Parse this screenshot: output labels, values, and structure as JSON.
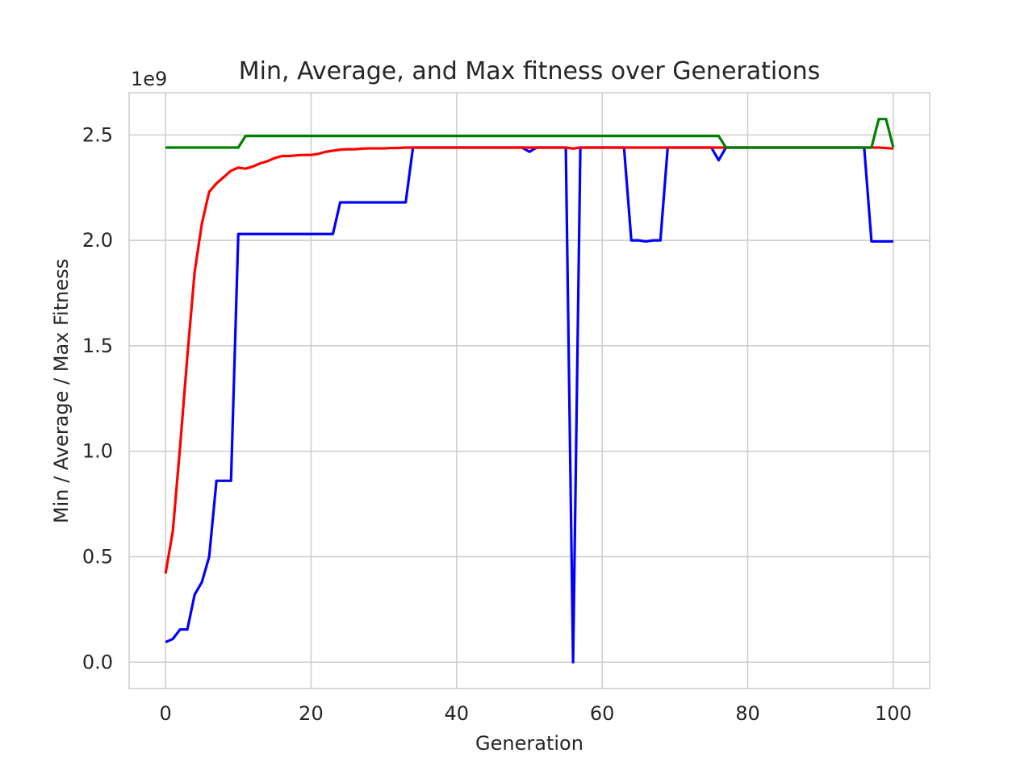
{
  "chart_data": {
    "type": "line",
    "title": "Min, Average, and Max fitness over Generations",
    "xlabel": "Generation",
    "ylabel": "Min / Average / Max Fitness",
    "y_offset_label": "1e9",
    "xlim": [
      -5,
      105
    ],
    "ylim": [
      -0.125,
      2.7
    ],
    "xticks": [
      0,
      20,
      40,
      60,
      80,
      100
    ],
    "xtick_labels": [
      "0",
      "20",
      "40",
      "60",
      "80",
      "100"
    ],
    "yticks": [
      0.0,
      0.5,
      1.0,
      1.5,
      2.0,
      2.5
    ],
    "ytick_labels": [
      "0.0",
      "0.5",
      "1.0",
      "1.5",
      "2.0",
      "2.5"
    ],
    "grid": true,
    "x": [
      0,
      1,
      2,
      3,
      4,
      5,
      6,
      7,
      8,
      9,
      10,
      11,
      12,
      13,
      14,
      15,
      16,
      17,
      18,
      19,
      20,
      21,
      22,
      23,
      24,
      25,
      26,
      27,
      28,
      29,
      30,
      31,
      32,
      33,
      34,
      35,
      36,
      37,
      38,
      39,
      40,
      41,
      42,
      43,
      44,
      45,
      46,
      47,
      48,
      49,
      50,
      51,
      52,
      53,
      54,
      55,
      56,
      57,
      58,
      59,
      60,
      61,
      62,
      63,
      64,
      65,
      66,
      67,
      68,
      69,
      70,
      71,
      72,
      73,
      74,
      75,
      76,
      77,
      78,
      79,
      80,
      81,
      82,
      83,
      84,
      85,
      86,
      87,
      88,
      89,
      90,
      91,
      92,
      93,
      94,
      95,
      96,
      97,
      98,
      99,
      100
    ],
    "series": [
      {
        "color": "#0000ff",
        "values": [
          0.095,
          0.11,
          0.155,
          0.155,
          0.32,
          0.38,
          0.5,
          0.86,
          0.86,
          0.86,
          2.03,
          2.03,
          2.03,
          2.03,
          2.03,
          2.03,
          2.03,
          2.03,
          2.03,
          2.03,
          2.03,
          2.03,
          2.03,
          2.03,
          2.18,
          2.18,
          2.18,
          2.18,
          2.18,
          2.18,
          2.18,
          2.18,
          2.18,
          2.18,
          2.44,
          2.44,
          2.44,
          2.44,
          2.44,
          2.44,
          2.44,
          2.44,
          2.44,
          2.44,
          2.44,
          2.44,
          2.44,
          2.44,
          2.44,
          2.44,
          2.42,
          2.44,
          2.44,
          2.44,
          2.44,
          2.44,
          0.0,
          2.44,
          2.44,
          2.44,
          2.44,
          2.44,
          2.44,
          2.44,
          2.0,
          2.0,
          1.995,
          2.0,
          2.0,
          2.44,
          2.44,
          2.44,
          2.44,
          2.44,
          2.44,
          2.44,
          2.38,
          2.44,
          2.44,
          2.44,
          2.44,
          2.44,
          2.44,
          2.44,
          2.44,
          2.44,
          2.44,
          2.44,
          2.44,
          2.44,
          2.44,
          2.44,
          2.44,
          2.44,
          2.44,
          2.44,
          2.44,
          1.995,
          1.995,
          1.995,
          1.995
        ]
      },
      {
        "color": "#ff0000",
        "values": [
          0.42,
          0.62,
          1.02,
          1.45,
          1.85,
          2.08,
          2.23,
          2.27,
          2.3,
          2.33,
          2.345,
          2.34,
          2.35,
          2.365,
          2.375,
          2.39,
          2.4,
          2.4,
          2.403,
          2.405,
          2.405,
          2.41,
          2.42,
          2.425,
          2.43,
          2.432,
          2.432,
          2.435,
          2.436,
          2.436,
          2.436,
          2.438,
          2.438,
          2.44,
          2.44,
          2.44,
          2.44,
          2.44,
          2.44,
          2.44,
          2.44,
          2.44,
          2.44,
          2.44,
          2.44,
          2.44,
          2.44,
          2.44,
          2.44,
          2.44,
          2.44,
          2.44,
          2.44,
          2.44,
          2.44,
          2.44,
          2.435,
          2.44,
          2.44,
          2.44,
          2.44,
          2.44,
          2.44,
          2.44,
          2.44,
          2.44,
          2.44,
          2.44,
          2.44,
          2.44,
          2.44,
          2.44,
          2.44,
          2.44,
          2.44,
          2.44,
          2.44,
          2.44,
          2.44,
          2.44,
          2.44,
          2.44,
          2.44,
          2.44,
          2.44,
          2.44,
          2.44,
          2.44,
          2.44,
          2.44,
          2.44,
          2.44,
          2.44,
          2.44,
          2.44,
          2.44,
          2.44,
          2.44,
          2.44,
          2.438,
          2.435
        ]
      },
      {
        "color": "#008000",
        "values": [
          2.44,
          2.44,
          2.44,
          2.44,
          2.44,
          2.44,
          2.44,
          2.44,
          2.44,
          2.44,
          2.44,
          2.495,
          2.495,
          2.495,
          2.495,
          2.495,
          2.495,
          2.495,
          2.495,
          2.495,
          2.495,
          2.495,
          2.495,
          2.495,
          2.495,
          2.495,
          2.495,
          2.495,
          2.495,
          2.495,
          2.495,
          2.495,
          2.495,
          2.495,
          2.495,
          2.495,
          2.495,
          2.495,
          2.495,
          2.495,
          2.495,
          2.495,
          2.495,
          2.495,
          2.495,
          2.495,
          2.495,
          2.495,
          2.495,
          2.495,
          2.495,
          2.495,
          2.495,
          2.495,
          2.495,
          2.495,
          2.495,
          2.495,
          2.495,
          2.495,
          2.495,
          2.495,
          2.495,
          2.495,
          2.495,
          2.495,
          2.495,
          2.495,
          2.495,
          2.495,
          2.495,
          2.495,
          2.495,
          2.495,
          2.495,
          2.495,
          2.495,
          2.44,
          2.44,
          2.44,
          2.44,
          2.44,
          2.44,
          2.44,
          2.44,
          2.44,
          2.44,
          2.44,
          2.44,
          2.44,
          2.44,
          2.44,
          2.44,
          2.44,
          2.44,
          2.44,
          2.44,
          2.44,
          2.575,
          2.575,
          2.44
        ]
      }
    ]
  }
}
